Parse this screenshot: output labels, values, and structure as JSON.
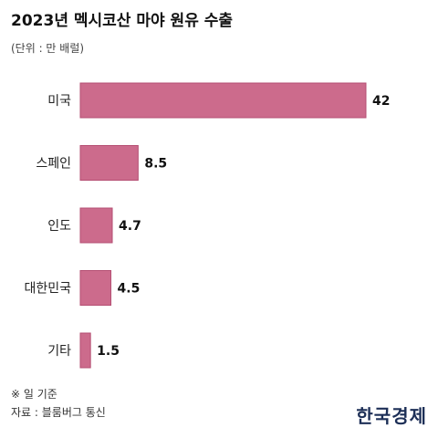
{
  "title": "2023년 멕시코산 마야 원유 수출",
  "unit": "(단위 : 만 배럴)",
  "note": "※ 일 기준",
  "source": "자료 : 블룸버그 통신",
  "logo": "한국경제",
  "colors": {
    "bar": "#cc6b8c",
    "bar_border": "#b54f73"
  },
  "chart_data": {
    "type": "bar",
    "orientation": "horizontal",
    "title": "2023년 멕시코산 마야 원유 수출",
    "ylabel": "(단위 : 만 배럴)",
    "categories": [
      "미국",
      "스페인",
      "인도",
      "대한민국",
      "기타"
    ],
    "values": [
      42,
      8.5,
      4.7,
      4.5,
      1.5
    ],
    "value_labels": [
      "42",
      "8.5",
      "4.7",
      "4.5",
      "1.5"
    ],
    "xlim": [
      0,
      42
    ],
    "grid": false,
    "legend": "none"
  }
}
